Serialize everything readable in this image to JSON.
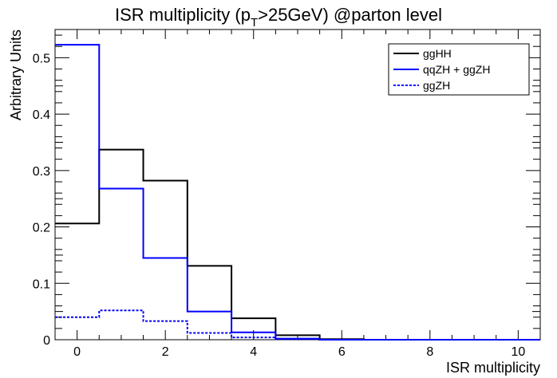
{
  "chart_data": {
    "type": "step",
    "title_main": "ISR multiplicity (p",
    "title_sub": "T",
    "title_rest": ">25GeV) @parton level",
    "xlabel": "ISR multiplicity",
    "ylabel": "Arbitrary Units",
    "xlim": [
      -0.5,
      10.5
    ],
    "ylim": [
      0,
      0.55
    ],
    "x_ticks": [
      0,
      2,
      4,
      6,
      8,
      10
    ],
    "y_ticks": [
      0,
      0.1,
      0.2,
      0.3,
      0.4,
      0.5
    ],
    "x_tick_labels": [
      "0",
      "2",
      "4",
      "6",
      "8",
      "10"
    ],
    "y_tick_labels": [
      "0",
      "0.1",
      "0.2",
      "0.3",
      "0.4",
      "0.5"
    ],
    "bin_edges": [
      -0.5,
      0.5,
      1.5,
      2.5,
      3.5,
      4.5,
      5.5,
      6.5,
      7.5,
      8.5,
      9.5,
      10.5
    ],
    "legend_position": "top-right",
    "series": [
      {
        "name": "ggHH",
        "color": "#000000",
        "style": "solid",
        "values": [
          0.206,
          0.337,
          0.282,
          0.131,
          0.038,
          0.008,
          0.001,
          0,
          0,
          0,
          0
        ]
      },
      {
        "name": "qqZH + ggZH",
        "color": "#0000ff",
        "style": "solid",
        "values": [
          0.523,
          0.268,
          0.145,
          0.05,
          0.013,
          0.002,
          0,
          0,
          0,
          0,
          0
        ]
      },
      {
        "name": "ggZH",
        "color": "#0000ff",
        "style": "dotted",
        "values": [
          0.04,
          0.052,
          0.033,
          0.012,
          0.004,
          0.001,
          0,
          0,
          0,
          0,
          0
        ]
      }
    ]
  }
}
